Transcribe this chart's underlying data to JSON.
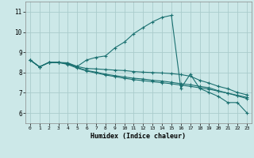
{
  "xlabel": "Humidex (Indice chaleur)",
  "bg_color": "#cce8e8",
  "grid_color": "#aacccc",
  "line_color": "#1a7070",
  "xlim": [
    -0.5,
    23.5
  ],
  "ylim": [
    5.5,
    11.5
  ],
  "xticks": [
    0,
    1,
    2,
    3,
    4,
    5,
    6,
    7,
    8,
    9,
    10,
    11,
    12,
    13,
    14,
    15,
    16,
    17,
    18,
    19,
    20,
    21,
    22,
    23
  ],
  "yticks": [
    6,
    7,
    8,
    9,
    10,
    11
  ],
  "line1_y": [
    8.62,
    8.28,
    8.5,
    8.5,
    8.45,
    8.3,
    8.62,
    8.75,
    8.82,
    9.22,
    9.5,
    9.92,
    10.22,
    10.5,
    10.72,
    10.82,
    7.22,
    7.92,
    7.22,
    7.02,
    6.82,
    6.52,
    6.52,
    6.02
  ],
  "line2_y": [
    8.62,
    8.28,
    8.5,
    8.5,
    8.48,
    8.3,
    8.2,
    8.18,
    8.15,
    8.12,
    8.1,
    8.05,
    8.02,
    8.0,
    7.98,
    7.95,
    7.9,
    7.82,
    7.62,
    7.48,
    7.32,
    7.2,
    7.02,
    6.9
  ],
  "line3_y": [
    8.62,
    8.28,
    8.5,
    8.5,
    8.42,
    8.25,
    8.1,
    8.02,
    7.92,
    7.85,
    7.78,
    7.72,
    7.68,
    7.62,
    7.58,
    7.52,
    7.45,
    7.4,
    7.32,
    7.25,
    7.1,
    6.98,
    6.85,
    6.72
  ],
  "line4_y": [
    8.62,
    8.28,
    8.5,
    8.5,
    8.4,
    8.22,
    8.08,
    7.98,
    7.88,
    7.8,
    7.72,
    7.65,
    7.6,
    7.55,
    7.5,
    7.45,
    7.38,
    7.32,
    7.25,
    7.18,
    7.08,
    6.98,
    6.88,
    6.78
  ]
}
